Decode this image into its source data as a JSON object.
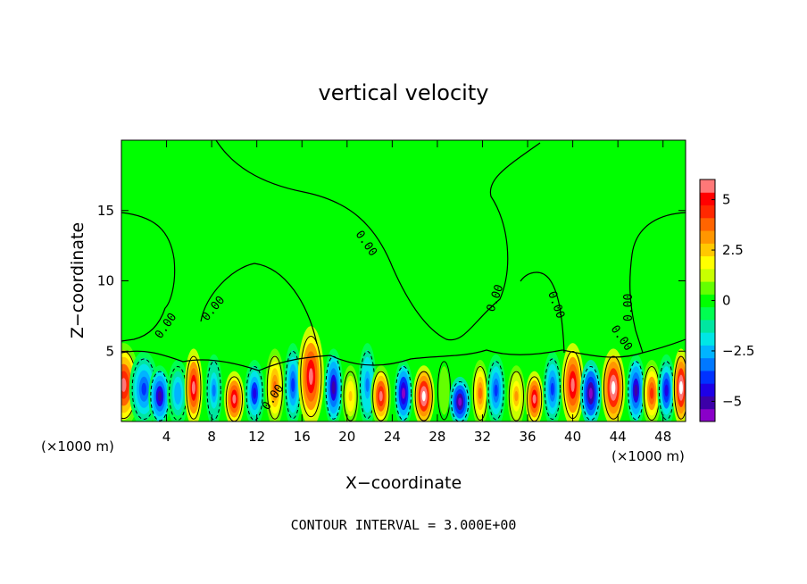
{
  "chart_data": {
    "type": "heatmap",
    "title": "vertical velocity",
    "xlabel": "X−coordinate",
    "ylabel": "Z−coordinate",
    "x_unit_left": "(×1000 m)",
    "x_unit_right": "(×1000 m)",
    "footer": "CONTOUR INTERVAL = 3.000E+00",
    "xlim": [
      0,
      50
    ],
    "ylim": [
      0,
      20
    ],
    "xticks": [
      4,
      8,
      12,
      16,
      20,
      24,
      28,
      32,
      36,
      40,
      44,
      48
    ],
    "xtick_labels": [
      "4",
      "8",
      "12",
      "16",
      "20",
      "24",
      "28",
      "32",
      "36",
      "40",
      "44",
      "48"
    ],
    "yticks": [
      5,
      10,
      15
    ],
    "ytick_labels": [
      "5",
      "10",
      "15"
    ],
    "colorbar": {
      "min": -6,
      "max": 6,
      "ticks": [
        5,
        2.5,
        0,
        -2.5,
        -5
      ],
      "tick_labels": [
        "5",
        "2.5",
        "0",
        "−2.5",
        "−5"
      ],
      "colors": [
        "#8a00c8",
        "#3c00a8",
        "#1e00e6",
        "#0032ff",
        "#0078ff",
        "#00b4ff",
        "#00e6e6",
        "#00e6a0",
        "#00ff50",
        "#00ff00",
        "#64ff00",
        "#c8ff00",
        "#ffff00",
        "#ffc800",
        "#ff9600",
        "#ff6400",
        "#ff2800",
        "#ff0000",
        "#ff7878"
      ],
      "background_color": "#00ff00"
    },
    "contour_label": "0.00",
    "contour_interval": 3,
    "cells": [
      {
        "x": 0.2,
        "z": 2.6,
        "w": 2.8,
        "value": 5.5
      },
      {
        "x": 2.0,
        "z": 2.3,
        "w": 2.6,
        "value": -3.6
      },
      {
        "x": 3.4,
        "z": 1.8,
        "w": 2.0,
        "value": -5.0
      },
      {
        "x": 5.0,
        "z": 2.0,
        "w": 1.9,
        "value": -2.8
      },
      {
        "x": 6.4,
        "z": 2.4,
        "w": 1.6,
        "value": 5.8
      },
      {
        "x": 8.2,
        "z": 2.2,
        "w": 1.5,
        "value": -3.0
      },
      {
        "x": 10.0,
        "z": 1.6,
        "w": 1.8,
        "value": 6.0
      },
      {
        "x": 11.8,
        "z": 2.0,
        "w": 1.8,
        "value": -4.2
      },
      {
        "x": 13.6,
        "z": 2.4,
        "w": 1.7,
        "value": 3.6
      },
      {
        "x": 15.2,
        "z": 2.6,
        "w": 1.6,
        "value": -3.8
      },
      {
        "x": 16.8,
        "z": 3.2,
        "w": 2.3,
        "value": 6.0
      },
      {
        "x": 18.8,
        "z": 2.4,
        "w": 1.7,
        "value": -5.0
      },
      {
        "x": 20.3,
        "z": 1.8,
        "w": 1.5,
        "value": 2.6
      },
      {
        "x": 21.8,
        "z": 2.6,
        "w": 1.6,
        "value": -3.2
      },
      {
        "x": 23.0,
        "z": 1.8,
        "w": 1.8,
        "value": 5.6
      },
      {
        "x": 25.0,
        "z": 2.0,
        "w": 1.7,
        "value": -5.4
      },
      {
        "x": 26.8,
        "z": 1.8,
        "w": 1.9,
        "value": 6.9
      },
      {
        "x": 28.6,
        "z": 2.2,
        "w": 1.4,
        "value": 0.8
      },
      {
        "x": 30.0,
        "z": 1.4,
        "w": 1.9,
        "value": -6.0
      },
      {
        "x": 31.8,
        "z": 2.0,
        "w": 1.5,
        "value": 3.8
      },
      {
        "x": 33.2,
        "z": 2.2,
        "w": 1.7,
        "value": -4.0
      },
      {
        "x": 35.0,
        "z": 1.8,
        "w": 1.6,
        "value": 3.0
      },
      {
        "x": 36.6,
        "z": 1.6,
        "w": 1.6,
        "value": 6.0
      },
      {
        "x": 38.2,
        "z": 2.3,
        "w": 1.7,
        "value": -3.6
      },
      {
        "x": 40.0,
        "z": 2.6,
        "w": 2.0,
        "value": 6.0
      },
      {
        "x": 41.6,
        "z": 2.0,
        "w": 1.9,
        "value": -6.0
      },
      {
        "x": 43.6,
        "z": 2.4,
        "w": 2.1,
        "value": 6.9
      },
      {
        "x": 45.6,
        "z": 2.2,
        "w": 1.7,
        "value": -5.2
      },
      {
        "x": 47.0,
        "z": 2.0,
        "w": 1.7,
        "value": 4.4
      },
      {
        "x": 48.3,
        "z": 2.2,
        "w": 1.6,
        "value": -4.4
      },
      {
        "x": 49.6,
        "z": 2.4,
        "w": 1.5,
        "value": 6.9
      }
    ]
  }
}
